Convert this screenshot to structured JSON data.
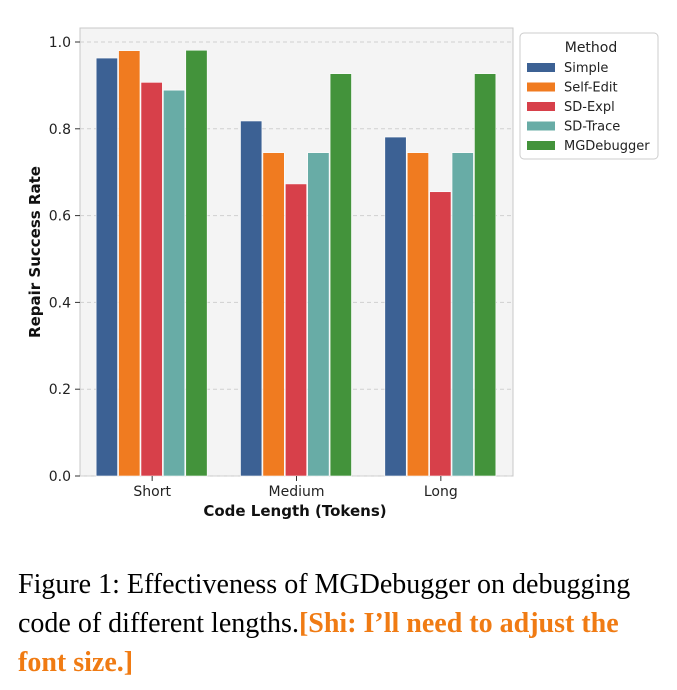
{
  "chart_data": {
    "type": "bar",
    "categories": [
      "Short",
      "Medium",
      "Long"
    ],
    "series": [
      {
        "name": "Simple",
        "color": "#3c6194",
        "values": [
          0.963,
          0.818,
          0.781
        ]
      },
      {
        "name": "Self-Edit",
        "color": "#f07b20",
        "values": [
          0.98,
          0.745,
          0.745
        ]
      },
      {
        "name": "SD-Expl",
        "color": "#d7404a",
        "values": [
          0.907,
          0.673,
          0.655
        ]
      },
      {
        "name": "SD-Trace",
        "color": "#68aca6",
        "values": [
          0.889,
          0.745,
          0.745
        ]
      },
      {
        "name": "MGDebugger",
        "color": "#43933b",
        "values": [
          0.981,
          0.927,
          0.927
        ]
      }
    ],
    "xlabel": "Code Length (Tokens)",
    "ylabel": "Repair Success Rate",
    "ylim": [
      0,
      1.0
    ],
    "yticks": [
      "0.0",
      "0.2",
      "0.4",
      "0.6",
      "0.8",
      "1.0"
    ],
    "legend_title": "Method",
    "legend_position": "upper-right-outside",
    "grid": true
  },
  "caption": {
    "text": "Figure 1: Effectiveness of MGDebugger on debugging code of different lengths.",
    "note": "[Shi: I’ll need to adjust the font size.]"
  }
}
